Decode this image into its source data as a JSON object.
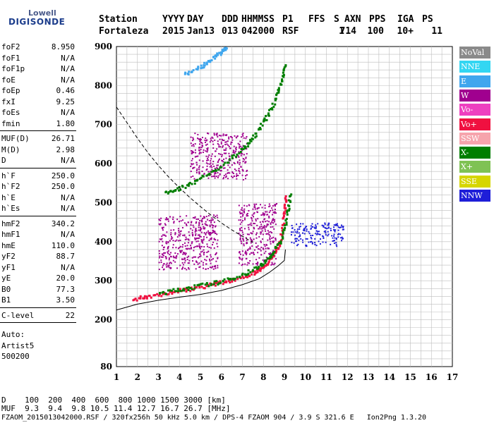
{
  "logo": {
    "top": "Lowell",
    "main": "DIGISONDE"
  },
  "header": {
    "labels": [
      "Station",
      "YYYY",
      "DAY",
      "DDD",
      "HHMMSS",
      "P1",
      "FFS",
      "S",
      "AXN",
      "PPS",
      "IGA",
      "PS"
    ],
    "values": [
      "Fortaleza",
      "2015",
      "Jan13",
      "013",
      "042000",
      "RSF",
      "",
      "1",
      "714",
      "100",
      "10+",
      "11"
    ]
  },
  "params_groups": [
    [
      {
        "k": "foF2",
        "v": "8.950"
      },
      {
        "k": "foF1",
        "v": "N/A"
      },
      {
        "k": "foF1p",
        "v": "N/A"
      },
      {
        "k": "foE",
        "v": "N/A"
      },
      {
        "k": "foEp",
        "v": "0.46"
      },
      {
        "k": "fxI",
        "v": "9.25"
      },
      {
        "k": "foEs",
        "v": "N/A"
      },
      {
        "k": "fmin",
        "v": "1.80"
      }
    ],
    [
      {
        "k": "MUF(D)",
        "v": "26.71"
      },
      {
        "k": "M(D)",
        "v": "2.98"
      },
      {
        "k": "D",
        "v": "N/A"
      }
    ],
    [
      {
        "k": "h`F",
        "v": "250.0"
      },
      {
        "k": "h`F2",
        "v": "250.0"
      },
      {
        "k": "h`E",
        "v": "N/A"
      },
      {
        "k": "h`Es",
        "v": "N/A"
      }
    ],
    [
      {
        "k": "hmF2",
        "v": "340.2"
      },
      {
        "k": "hmF1",
        "v": "N/A"
      },
      {
        "k": "hmE",
        "v": "110.0"
      },
      {
        "k": "yF2",
        "v": "88.7"
      },
      {
        "k": "yF1",
        "v": "N/A"
      },
      {
        "k": "yE",
        "v": "20.0"
      },
      {
        "k": "B0",
        "v": "77.3"
      },
      {
        "k": "B1",
        "v": "3.50"
      }
    ],
    [
      {
        "k": "C-level",
        "v": "22"
      }
    ]
  ],
  "auto": [
    "Auto:",
    "Artist5",
    "500200"
  ],
  "legend": [
    {
      "label": "NoVal",
      "color": "#8a8a8a"
    },
    {
      "label": "NNE",
      "color": "#33d6f2"
    },
    {
      "label": "E",
      "color": "#3fa6ee"
    },
    {
      "label": "W",
      "color": "#a0008f"
    },
    {
      "label": "Vo-",
      "color": "#ee40c0"
    },
    {
      "label": "Vo+",
      "color": "#f01040"
    },
    {
      "label": "SSW",
      "color": "#f6a4ac"
    },
    {
      "label": "X-",
      "color": "#007e00"
    },
    {
      "label": "X+",
      "color": "#7fc254"
    },
    {
      "label": "SSE",
      "color": "#d6d600"
    },
    {
      "label": "NNW",
      "color": "#1e1ed8"
    }
  ],
  "chart_data": {
    "type": "scatter",
    "x_ticks": [
      "1",
      "2",
      "3",
      "4",
      "5",
      "6",
      "7",
      "8",
      "9",
      "10",
      "11",
      "12",
      "13",
      "14",
      "15",
      "16",
      "17"
    ],
    "y_ticks": [
      "80",
      "200",
      "300",
      "400",
      "500",
      "600",
      "700",
      "800",
      "900"
    ],
    "xlim": [
      1,
      17
    ],
    "ylim": [
      80,
      900
    ],
    "grid": true,
    "traces": [
      {
        "name": "O-trace F2",
        "color": "#f01040",
        "points": [
          [
            1.8,
            255
          ],
          [
            2.5,
            262
          ],
          [
            3.5,
            272
          ],
          [
            4.5,
            282
          ],
          [
            5.5,
            292
          ],
          [
            6.5,
            305
          ],
          [
            7.5,
            322
          ],
          [
            8.0,
            340
          ],
          [
            8.5,
            370
          ],
          [
            8.8,
            410
          ],
          [
            8.95,
            470
          ],
          [
            9.05,
            520
          ]
        ]
      },
      {
        "name": "X-trace F2",
        "color": "#007e00",
        "points": [
          [
            3,
            270
          ],
          [
            4,
            280
          ],
          [
            5,
            290
          ],
          [
            6,
            300
          ],
          [
            7,
            318
          ],
          [
            7.8,
            340
          ],
          [
            8.3,
            365
          ],
          [
            8.8,
            405
          ],
          [
            9.1,
            470
          ],
          [
            9.25,
            530
          ]
        ]
      },
      {
        "name": "2nd hop",
        "color": "#007e00",
        "points": [
          [
            3.3,
            525
          ],
          [
            4,
            540
          ],
          [
            5,
            565
          ],
          [
            6,
            595
          ],
          [
            7,
            640
          ],
          [
            7.5,
            672
          ],
          [
            8,
            712
          ],
          [
            8.5,
            760
          ],
          [
            8.8,
            810
          ],
          [
            9,
            860
          ]
        ]
      },
      {
        "name": "3rd hop",
        "color": "#3fa6ee",
        "points": [
          [
            4.2,
            830
          ],
          [
            5,
            850
          ],
          [
            5.5,
            870
          ],
          [
            6,
            890
          ],
          [
            6.2,
            900
          ]
        ]
      }
    ],
    "clusters": [
      {
        "color": "#a0008f",
        "x": [
          3.0,
          5.8
        ],
        "y": [
          330,
          470
        ]
      },
      {
        "color": "#a0008f",
        "x": [
          6.8,
          8.6
        ],
        "y": [
          340,
          500
        ]
      },
      {
        "color": "#1e1ed8",
        "x": [
          9.3,
          11.8
        ],
        "y": [
          390,
          450
        ]
      },
      {
        "color": "#a0008f",
        "x": [
          4.5,
          7.2
        ],
        "y": [
          560,
          680
        ]
      }
    ],
    "model_profile": [
      [
        1.0,
        225
      ],
      [
        2,
        240
      ],
      [
        3,
        250
      ],
      [
        4,
        258
      ],
      [
        5,
        265
      ],
      [
        6,
        275
      ],
      [
        7,
        290
      ],
      [
        7.8,
        305
      ],
      [
        8.3,
        322
      ],
      [
        8.7,
        338
      ],
      [
        9.0,
        352
      ],
      [
        9.05,
        380
      ]
    ],
    "muf_curve": [
      [
        1.0,
        745
      ],
      [
        1.5,
        705
      ],
      [
        2,
        665
      ],
      [
        2.5,
        628
      ],
      [
        3,
        595
      ],
      [
        3.5,
        565
      ],
      [
        4,
        538
      ],
      [
        4.5,
        513
      ],
      [
        5,
        490
      ],
      [
        5.5,
        468
      ],
      [
        6,
        448
      ],
      [
        6.5,
        430
      ],
      [
        7,
        414
      ],
      [
        7.5,
        398
      ]
    ]
  },
  "bottom": {
    "line1": "D    100  200  400  600  800 1000 1500 3000 [km]",
    "line2": "MUF  9.3  9.4  9.8 10.5 11.4 12.7 16.7 26.7 [MHz]",
    "line3": "FZAOM_2015013042000.RSF / 320fx256h 50 kHz 5.0 km / DPS-4 FZAOM 904 / 3.9 S 321.6 E   Ion2Png 1.3.20"
  }
}
